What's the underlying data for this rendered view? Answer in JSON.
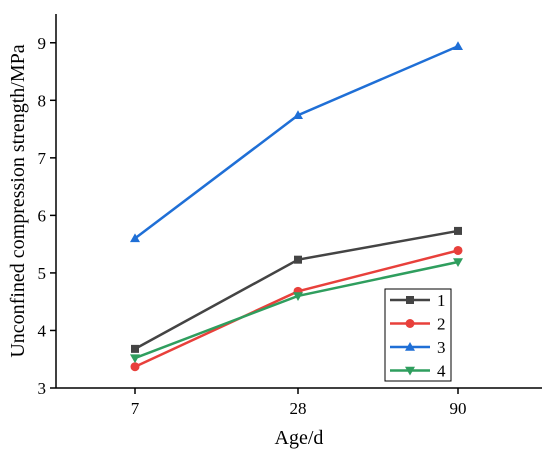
{
  "chart_data": {
    "type": "line",
    "title": "",
    "xlabel": "Age/d",
    "ylabel": "Unconfined compression strength/MPa",
    "categories": [
      "7",
      "28",
      "90"
    ],
    "ylim": [
      3,
      9.5
    ],
    "yticks": [
      "3",
      "4",
      "5",
      "6",
      "7",
      "8",
      "9"
    ],
    "grid": false,
    "legend_position": "bottom-right",
    "series": [
      {
        "name": "1",
        "values": [
          3.68,
          5.23,
          5.73
        ],
        "color": "#444444",
        "marker": "square"
      },
      {
        "name": "2",
        "values": [
          3.37,
          4.68,
          5.39
        ],
        "color": "#e8403b",
        "marker": "circle"
      },
      {
        "name": "3",
        "values": [
          5.6,
          7.74,
          8.94
        ],
        "color": "#1f6fd6",
        "marker": "triangle-up"
      },
      {
        "name": "4",
        "values": [
          3.52,
          4.6,
          5.19
        ],
        "color": "#2f9e5e",
        "marker": "triangle-down"
      }
    ]
  }
}
